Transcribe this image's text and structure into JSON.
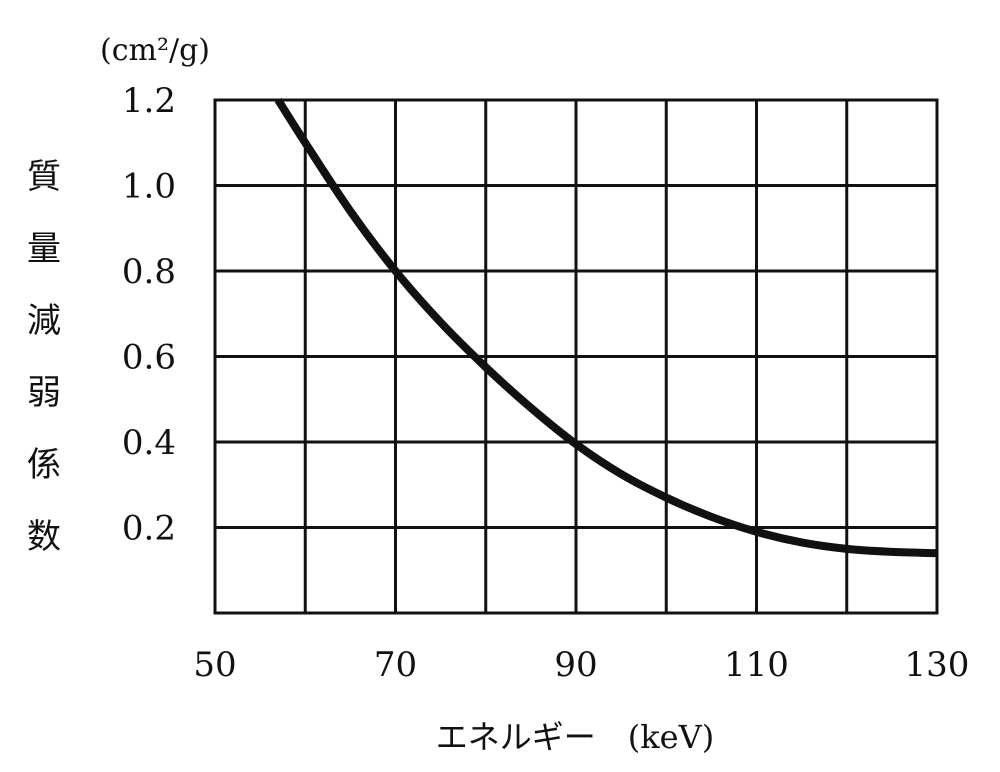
{
  "chart_data": {
    "type": "line",
    "title": "",
    "xlabel": "エネルギー　(keV)",
    "ylabel_chars": [
      "質",
      "量",
      "減",
      "弱",
      "係",
      "数"
    ],
    "y_unit": "(cm²/g)",
    "xlim": [
      50,
      130
    ],
    "ylim": [
      0,
      1.2
    ],
    "x_ticks": [
      {
        "value": 50,
        "label": "50"
      },
      {
        "value": 70,
        "label": "70"
      },
      {
        "value": 90,
        "label": "90"
      },
      {
        "value": 110,
        "label": "110"
      },
      {
        "value": 130,
        "label": "130"
      }
    ],
    "y_ticks": [
      {
        "value": 0.2,
        "label": "0.2"
      },
      {
        "value": 0.4,
        "label": "0.4"
      },
      {
        "value": 0.6,
        "label": "0.6"
      },
      {
        "value": 0.8,
        "label": "0.8"
      },
      {
        "value": 1.0,
        "label": "1.0"
      },
      {
        "value": 1.2,
        "label": "1.2"
      }
    ],
    "grid": true,
    "x_grid_step": 10,
    "y_grid_step": 0.2,
    "series": [
      {
        "color": "#111111",
        "x": [
          57,
          60,
          65,
          70,
          75,
          80,
          85,
          90,
          95,
          100,
          105,
          110,
          115,
          120,
          125,
          130
        ],
        "y": [
          1.2,
          1.1,
          0.94,
          0.8,
          0.68,
          0.575,
          0.48,
          0.395,
          0.325,
          0.27,
          0.225,
          0.19,
          0.165,
          0.15,
          0.143,
          0.14
        ]
      }
    ]
  }
}
